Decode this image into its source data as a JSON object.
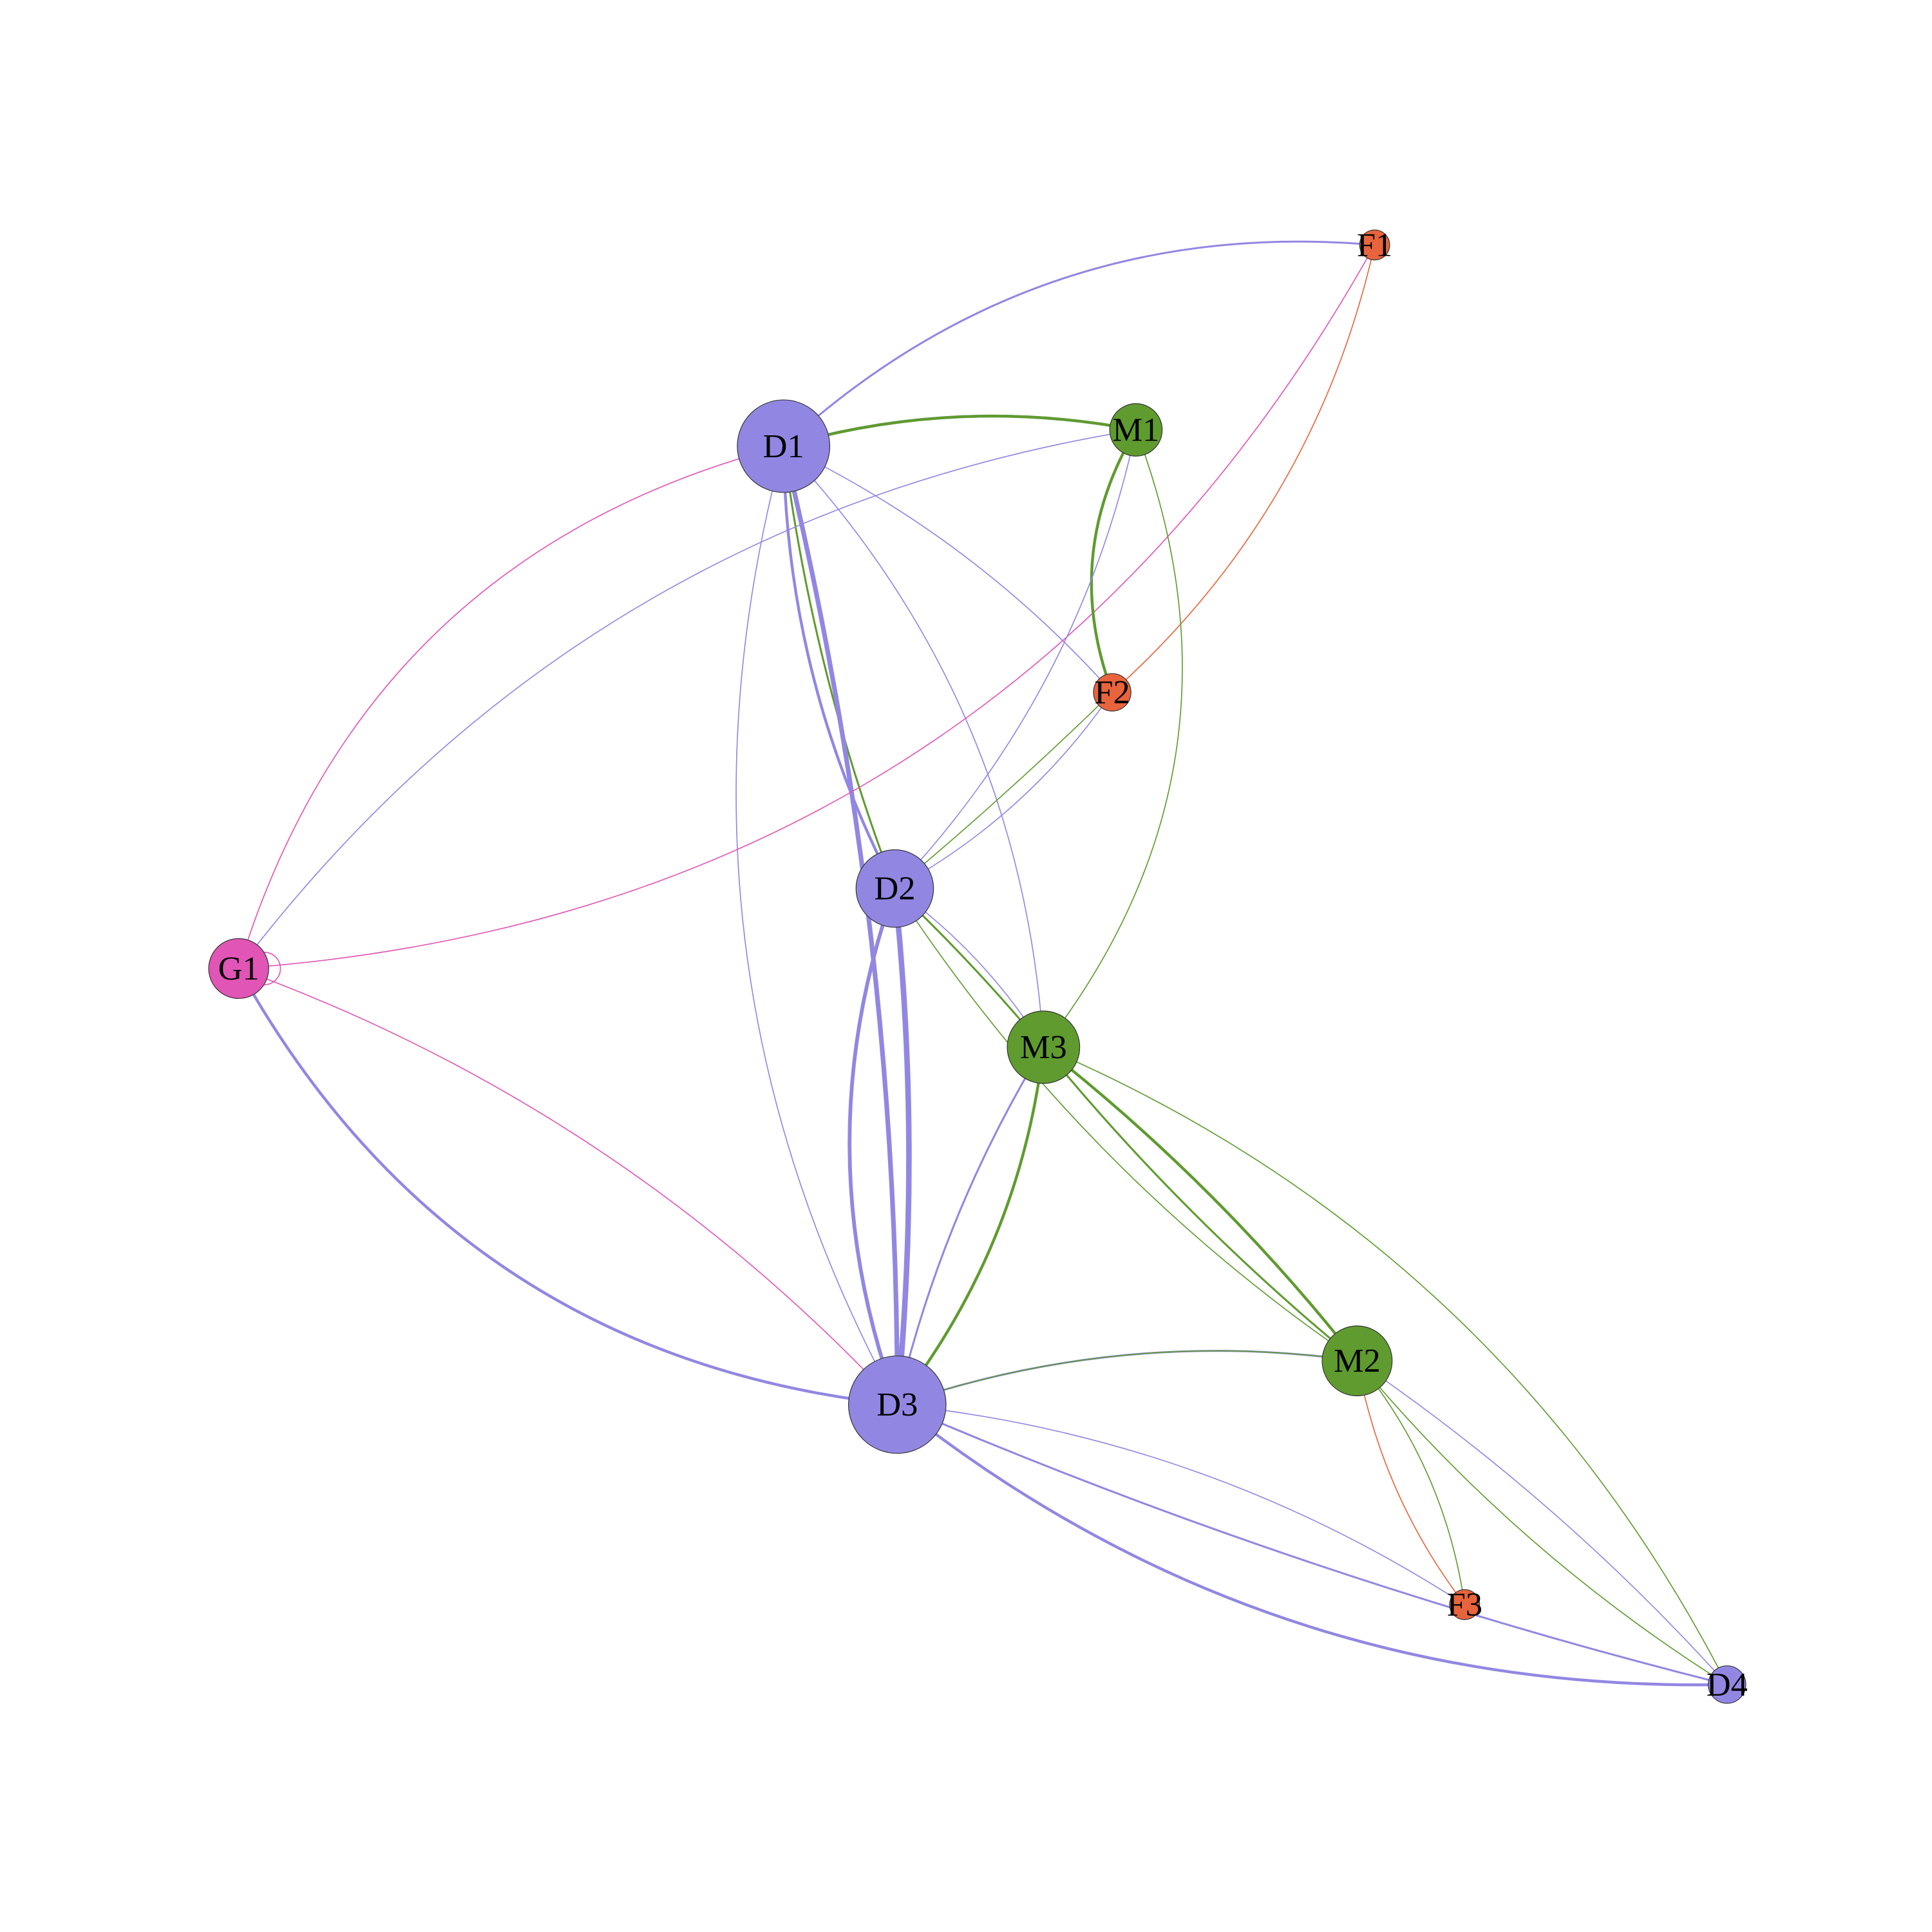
{
  "title": "",
  "colors": {
    "D": "#9187E2",
    "M": "#5F9B2F",
    "F": "#E8643C",
    "G": "#E055B6"
  },
  "nodes": [
    {
      "id": "D1",
      "label": "D1",
      "group": "D"
    },
    {
      "id": "D2",
      "label": "D2",
      "group": "D"
    },
    {
      "id": "D3",
      "label": "D3",
      "group": "D"
    },
    {
      "id": "D4",
      "label": "D4",
      "group": "D"
    },
    {
      "id": "M1",
      "label": "M1",
      "group": "M"
    },
    {
      "id": "M2",
      "label": "M2",
      "group": "M"
    },
    {
      "id": "M3",
      "label": "M3",
      "group": "M"
    },
    {
      "id": "F1",
      "label": "F1",
      "group": "F"
    },
    {
      "id": "F2",
      "label": "F2",
      "group": "F"
    },
    {
      "id": "F3",
      "label": "F3",
      "group": "F"
    },
    {
      "id": "G1",
      "label": "G1",
      "group": "G"
    }
  ],
  "edges": [
    {
      "source": "D1",
      "target": "F1",
      "group": "D",
      "weight": 2
    },
    {
      "source": "D1",
      "target": "M1",
      "group": "D",
      "weight": 3
    },
    {
      "source": "M1",
      "target": "D1",
      "group": "M",
      "weight": 3
    },
    {
      "source": "D1",
      "target": "D2",
      "group": "D",
      "weight": 3
    },
    {
      "source": "D1",
      "target": "D2",
      "group": "M",
      "weight": 2
    },
    {
      "source": "D1",
      "target": "D3",
      "group": "D",
      "weight": 5
    },
    {
      "source": "D1",
      "target": "F2",
      "group": "D",
      "weight": 1
    },
    {
      "source": "D1",
      "target": "M3",
      "group": "D",
      "weight": 1
    },
    {
      "source": "D1",
      "target": "D3",
      "group": "D",
      "weight": 1
    },
    {
      "source": "D1",
      "target": "G1",
      "group": "G",
      "weight": 1
    },
    {
      "source": "G1",
      "target": "F1",
      "group": "G",
      "weight": 1
    },
    {
      "source": "G1",
      "target": "M1",
      "group": "D",
      "weight": 1
    },
    {
      "source": "G1",
      "target": "G1",
      "group": "G",
      "weight": 1
    },
    {
      "source": "G1",
      "target": "D3",
      "group": "G",
      "weight": 1
    },
    {
      "source": "G1",
      "target": "D3",
      "group": "D",
      "weight": 3
    },
    {
      "source": "F1",
      "target": "F2",
      "group": "F",
      "weight": 1
    },
    {
      "source": "M1",
      "target": "F2",
      "group": "M",
      "weight": 3
    },
    {
      "source": "M1",
      "target": "D2",
      "group": "D",
      "weight": 1
    },
    {
      "source": "M1",
      "target": "M3",
      "group": "M",
      "weight": 1
    },
    {
      "source": "F2",
      "target": "D2",
      "group": "D",
      "weight": 1
    },
    {
      "source": "D2",
      "target": "F2",
      "group": "M",
      "weight": 1
    },
    {
      "source": "D2",
      "target": "M3",
      "group": "D",
      "weight": 1
    },
    {
      "source": "D2",
      "target": "M3",
      "group": "M",
      "weight": 2
    },
    {
      "source": "D2",
      "target": "D3",
      "group": "D",
      "weight": 4
    },
    {
      "source": "D3",
      "target": "D2",
      "group": "D",
      "weight": 6
    },
    {
      "source": "D2",
      "target": "M2",
      "group": "M",
      "weight": 1
    },
    {
      "source": "M3",
      "target": "D3",
      "group": "M",
      "weight": 3
    },
    {
      "source": "D3",
      "target": "M3",
      "group": "D",
      "weight": 2
    },
    {
      "source": "M3",
      "target": "M2",
      "group": "M",
      "weight": 2
    },
    {
      "source": "M3",
      "target": "M2",
      "group": "M",
      "weight": 3
    },
    {
      "source": "M3",
      "target": "D4",
      "group": "M",
      "weight": 1
    },
    {
      "source": "D3",
      "target": "M2",
      "group": "D",
      "weight": 2
    },
    {
      "source": "M2",
      "target": "D3",
      "group": "M",
      "weight": 1
    },
    {
      "source": "D3",
      "target": "D4",
      "group": "D",
      "weight": 3
    },
    {
      "source": "D3",
      "target": "F3",
      "group": "D",
      "weight": 1
    },
    {
      "source": "D4",
      "target": "D3",
      "group": "D",
      "weight": 2
    },
    {
      "source": "M2",
      "target": "F3",
      "group": "F",
      "weight": 1
    },
    {
      "source": "M2",
      "target": "F3",
      "group": "M",
      "weight": 1
    },
    {
      "source": "M2",
      "target": "D4",
      "group": "D",
      "weight": 1
    },
    {
      "source": "M2",
      "target": "D4",
      "group": "M",
      "weight": 1
    }
  ]
}
